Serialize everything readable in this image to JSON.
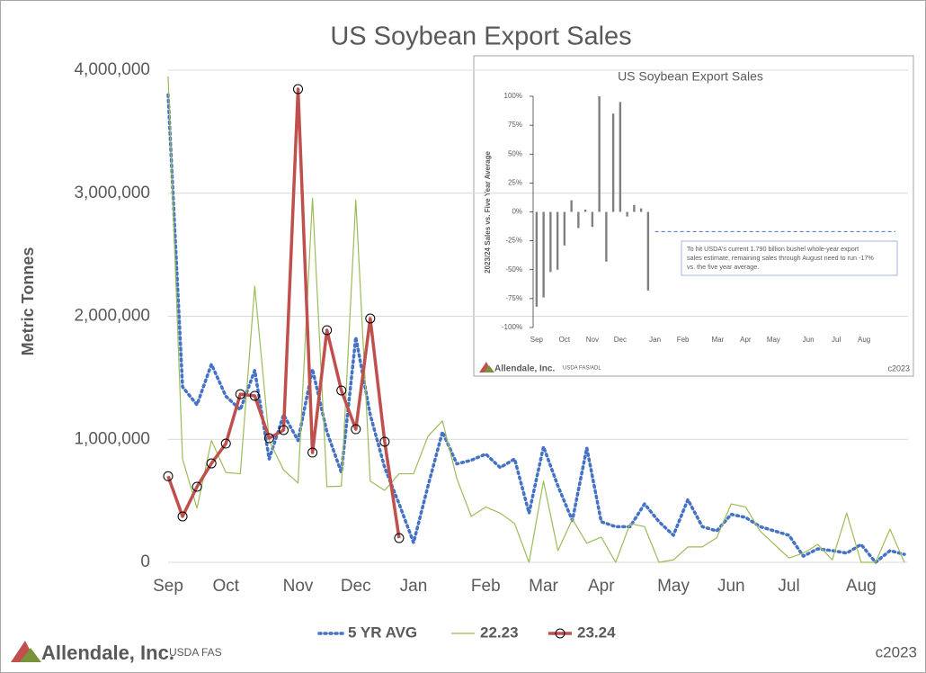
{
  "chart_data": [
    {
      "type": "line",
      "title": "US Soybean Export Sales",
      "y_label": "Metric Tonnes",
      "categories": [
        "Sep",
        null,
        null,
        null,
        "Oct",
        null,
        null,
        null,
        null,
        "Nov",
        null,
        null,
        null,
        "Dec",
        null,
        null,
        null,
        "Jan",
        null,
        null,
        null,
        null,
        "Feb",
        null,
        null,
        null,
        "Mar",
        null,
        null,
        null,
        "Apr",
        null,
        null,
        null,
        null,
        "May",
        null,
        null,
        null,
        "Jun",
        null,
        null,
        null,
        "Jul",
        null,
        null,
        null,
        null,
        "Aug",
        null,
        null,
        null
      ],
      "ylim": [
        0,
        4000000
      ],
      "yticks": [
        0,
        {
          "value": 1000000,
          "label": "1,000,000"
        },
        {
          "value": 2000000,
          "label": "2,000,000"
        },
        {
          "value": 3000000,
          "label": "3,000,000"
        },
        {
          "value": 4000000,
          "label": "4,000,000"
        }
      ],
      "grid": true,
      "legend": "bottom",
      "series": [
        {
          "name": "5 YR AVG",
          "color": "#4472c4",
          "line_style": "dotted",
          "marker": "none",
          "values": [
            3800000,
            1426000,
            1280000,
            1610000,
            1350000,
            1240000,
            1560000,
            840000,
            1200000,
            990000,
            1570000,
            1060000,
            730000,
            1830000,
            1200000,
            770000,
            475000,
            160000,
            620000,
            1060000,
            800000,
            830000,
            880000,
            770000,
            840000,
            400000,
            940000,
            620000,
            340000,
            930000,
            330000,
            290000,
            290000,
            475000,
            330000,
            220000,
            510000,
            290000,
            255000,
            390000,
            365000,
            290000,
            255000,
            220000,
            50000,
            110000,
            95000,
            75000,
            145000,
            0,
            95000,
            65000
          ]
        },
        {
          "name": "22.23",
          "color": "#9bbb59",
          "line_style": "solid",
          "marker": "none",
          "values": [
            3950000,
            840000,
            440000,
            990000,
            730000,
            720000,
            2245000,
            990000,
            750000,
            645000,
            2960000,
            614000,
            620000,
            2945000,
            660000,
            585000,
            720000,
            720000,
            1025000,
            1150000,
            680000,
            373000,
            450000,
            400000,
            315000,
            0,
            660000,
            95000,
            350000,
            155000,
            205000,
            0,
            315000,
            290000,
            0,
            20000,
            125000,
            125000,
            200000,
            475000,
            450000,
            255000,
            145000,
            35000,
            75000,
            145000,
            20000,
            400000,
            0,
            0,
            270000,
            0
          ]
        },
        {
          "name": "23.24",
          "color": "#c0504d",
          "line_style": "solid",
          "marker": "circle",
          "values": [
            700000,
            373000,
            614000,
            804000,
            965000,
            1367000,
            1353000,
            1009000,
            1075000,
            3846000,
            892000,
            1887000,
            1397000,
            1082000,
            1982000,
            980000,
            197000,
            null,
            null,
            null,
            null,
            null,
            null,
            null,
            null,
            null,
            null,
            null,
            null,
            null,
            null,
            null,
            null,
            null,
            null,
            null,
            null,
            null,
            null,
            null,
            null,
            null,
            null,
            null,
            null,
            null,
            null,
            null,
            null,
            null,
            null,
            null
          ]
        }
      ],
      "logo": "Allendale, Inc.",
      "source": "USDA FAS",
      "copyright": "c2023"
    },
    {
      "type": "bar",
      "title": "US Soybean Export Sales",
      "y_label": "2023/24 Sales vs. Five Year Average",
      "categories": [
        "Sep",
        null,
        null,
        null,
        "Oct",
        null,
        null,
        null,
        "Nov",
        null,
        null,
        null,
        "Dec",
        null,
        null,
        null,
        null,
        "Jan",
        null,
        null,
        null,
        "Feb",
        null,
        null,
        null,
        null,
        "Mar",
        null,
        null,
        null,
        "Apr",
        null,
        null,
        null,
        "May",
        null,
        null,
        null,
        null,
        "Jun",
        null,
        null,
        null,
        "Jul",
        null,
        null,
        null,
        "Aug",
        null,
        null,
        null,
        null
      ],
      "color": "#7f7f7f",
      "values": [
        -82,
        -74,
        -52,
        -50,
        -29,
        10,
        -14,
        2,
        -13,
        100,
        -43,
        85,
        95,
        -4,
        6,
        3,
        -68,
        null,
        null,
        null,
        null,
        null,
        null,
        null,
        null,
        null,
        null,
        null,
        null,
        null,
        null,
        null,
        null,
        null,
        null,
        null,
        null,
        null,
        null,
        null,
        null,
        null,
        null,
        null,
        null,
        null,
        null,
        null,
        null,
        null,
        null,
        null
      ],
      "ylim": [
        -100,
        100
      ],
      "yticks": [
        {
          "value": -100,
          "label": "-100%"
        },
        {
          "value": -75,
          "label": "-75%"
        },
        {
          "value": -50,
          "label": "-50%"
        },
        {
          "value": -25,
          "label": "-25%"
        },
        {
          "value": 0,
          "label": "0%"
        },
        {
          "value": 25,
          "label": "25%"
        },
        {
          "value": 50,
          "label": "50%"
        },
        {
          "value": 75,
          "label": "75%"
        },
        {
          "value": 100,
          "label": "100%"
        }
      ],
      "target": {
        "value": -17,
        "color": "#4472c4",
        "line_style": "dashed",
        "text": [
          "To hit USDA's current 1.790 billion bushel whole-year export",
          "sales estimate, remaining sales through August need to run -17%",
          "vs. the five year average."
        ]
      },
      "logo": "Allendale, Inc.",
      "source": "USDA FAS/ADL",
      "copyright": "c2023"
    }
  ]
}
